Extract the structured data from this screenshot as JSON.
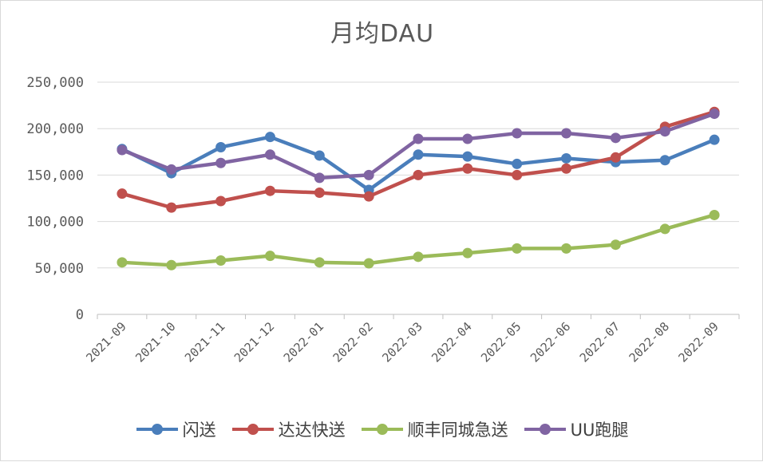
{
  "chart_data": {
    "type": "line",
    "title": "月均DAU",
    "categories": [
      "2021-09",
      "2021-10",
      "2021-11",
      "2021-12",
      "2022-01",
      "2022-02",
      "2022-03",
      "2022-04",
      "2022-05",
      "2022-06",
      "2022-07",
      "2022-08",
      "2022-09"
    ],
    "ylim": [
      0,
      250000
    ],
    "yticks": [
      "0",
      "50,000",
      "100,000",
      "150,000",
      "200,000",
      "250,000"
    ],
    "ytick_values": [
      0,
      50000,
      100000,
      150000,
      200000,
      250000
    ],
    "grid": true,
    "legend_position": "bottom",
    "series": [
      {
        "name": "闪送",
        "color": "#4a7ebb",
        "values": [
          178000,
          152000,
          180000,
          191000,
          171000,
          134000,
          172000,
          170000,
          162000,
          168000,
          164000,
          166000,
          188000
        ]
      },
      {
        "name": "达达快送",
        "color": "#c0504d",
        "values": [
          130000,
          115000,
          122000,
          133000,
          131000,
          127000,
          150000,
          157000,
          150000,
          157000,
          169000,
          202000,
          218000
        ]
      },
      {
        "name": "顺丰同城急送",
        "color": "#9bbb59",
        "values": [
          56000,
          53000,
          58000,
          63000,
          56000,
          55000,
          62000,
          66000,
          71000,
          71000,
          75000,
          92000,
          107000
        ]
      },
      {
        "name": "UU跑腿",
        "color": "#8064a2",
        "values": [
          177000,
          156000,
          163000,
          172000,
          147000,
          150000,
          189000,
          189000,
          195000,
          195000,
          190000,
          197000,
          216000
        ]
      }
    ]
  }
}
